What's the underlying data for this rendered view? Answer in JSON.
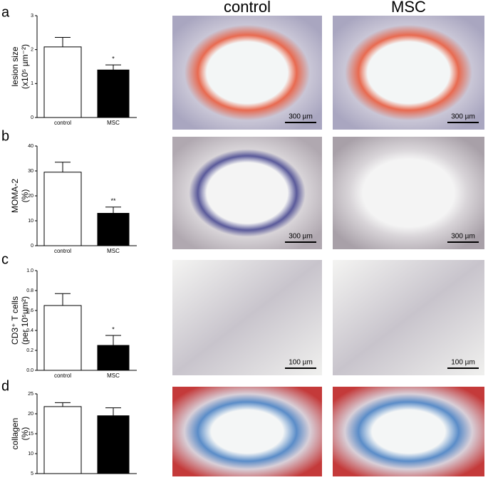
{
  "chart_data": [
    {
      "type": "bar",
      "panel": "a",
      "ylabel": [
        "lesion size",
        "(x10⁵ µm⁻²)"
      ],
      "categories": [
        "control",
        "MSC"
      ],
      "values": [
        2.08,
        1.4
      ],
      "errors": [
        0.28,
        0.15
      ],
      "annotations": [
        null,
        "*"
      ],
      "colors": [
        "#ffffff",
        "#000000"
      ],
      "ylim": [
        0,
        3
      ],
      "yticks": [
        0,
        1,
        2,
        3
      ]
    },
    {
      "type": "bar",
      "panel": "b",
      "ylabel": [
        "MOMA-2",
        "(%)"
      ],
      "categories": [
        "control",
        "MSC"
      ],
      "values": [
        29.5,
        13
      ],
      "errors": [
        4,
        2.5
      ],
      "annotations": [
        null,
        "**"
      ],
      "colors": [
        "#ffffff",
        "#000000"
      ],
      "ylim": [
        0,
        40
      ],
      "yticks": [
        0,
        10,
        20,
        30,
        40
      ]
    },
    {
      "type": "bar",
      "panel": "c",
      "ylabel": [
        "CD3⁺ T cells",
        "(per 10⁵µm²)"
      ],
      "categories": [
        "control",
        "MSC"
      ],
      "values": [
        0.65,
        0.25
      ],
      "errors": [
        0.12,
        0.1
      ],
      "annotations": [
        null,
        "*"
      ],
      "colors": [
        "#ffffff",
        "#000000"
      ],
      "ylim": [
        0,
        1
      ],
      "yticks": [
        {
          "value": 0,
          "label": "0.0"
        },
        0.2,
        0.4,
        0.6,
        0.8,
        {
          "value": 1,
          "label": "1.0"
        }
      ]
    },
    {
      "type": "bar",
      "panel": "d",
      "ylabel": [
        "collagen",
        "(%)"
      ],
      "categories": [
        null,
        null
      ],
      "values": [
        21.8,
        19.5
      ],
      "errors": [
        1,
        2
      ],
      "annotations": [
        null,
        null
      ],
      "colors": [
        "#ffffff",
        "#000000"
      ],
      "ylim": [
        5,
        25
      ],
      "yticks": [
        5,
        10,
        15,
        20,
        25
      ]
    }
  ],
  "images": {
    "columns": [
      "control",
      "MSC"
    ],
    "scale_bars": [
      [
        "300 µm",
        "300 µm"
      ],
      [
        "300 µm",
        "300 µm"
      ],
      [
        "100 µm",
        "100 µm"
      ],
      [
        null,
        null
      ]
    ]
  }
}
